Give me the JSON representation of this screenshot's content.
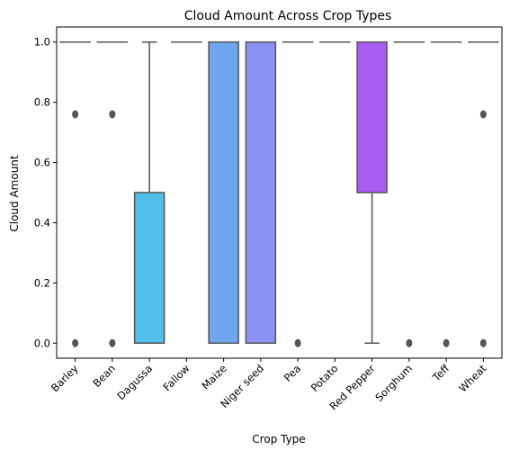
{
  "chart_data": {
    "type": "box",
    "title": "Cloud Amount Across Crop Types",
    "xlabel": "Crop Type",
    "ylabel": "Cloud Amount",
    "ylim": [
      -0.05,
      1.05
    ],
    "yticks": [
      "0.0",
      "0.2",
      "0.4",
      "0.6",
      "0.8",
      "1.0"
    ],
    "grid": false,
    "legend": "none",
    "categories": [
      "Barley",
      "Bean",
      "Dagussa",
      "Fallow",
      "Maize",
      "Niger seed",
      "Pea",
      "Potato",
      "Red Pepper",
      "Sorghum",
      "Teff",
      "Wheat"
    ],
    "boxes": [
      {
        "q1": 1.0,
        "median": 1.0,
        "q3": 1.0,
        "whisker_low": 1.0,
        "whisker_high": 1.0,
        "outliers": [
          0.0,
          0.76
        ]
      },
      {
        "q1": 1.0,
        "median": 1.0,
        "q3": 1.0,
        "whisker_low": 1.0,
        "whisker_high": 1.0,
        "outliers": [
          0.0,
          0.76
        ]
      },
      {
        "q1": 0.0,
        "median": 0.0,
        "q3": 0.5,
        "whisker_low": 0.0,
        "whisker_high": 1.0,
        "outliers": []
      },
      {
        "q1": 1.0,
        "median": 1.0,
        "q3": 1.0,
        "whisker_low": 1.0,
        "whisker_high": 1.0,
        "outliers": []
      },
      {
        "q1": 0.0,
        "median": 1.0,
        "q3": 1.0,
        "whisker_low": 0.0,
        "whisker_high": 1.0,
        "outliers": []
      },
      {
        "q1": 0.0,
        "median": 1.0,
        "q3": 1.0,
        "whisker_low": 0.0,
        "whisker_high": 1.0,
        "outliers": []
      },
      {
        "q1": 1.0,
        "median": 1.0,
        "q3": 1.0,
        "whisker_low": 1.0,
        "whisker_high": 1.0,
        "outliers": [
          0.0
        ]
      },
      {
        "q1": 1.0,
        "median": 1.0,
        "q3": 1.0,
        "whisker_low": 1.0,
        "whisker_high": 1.0,
        "outliers": []
      },
      {
        "q1": 0.5,
        "median": 1.0,
        "q3": 1.0,
        "whisker_low": 0.0,
        "whisker_high": 1.0,
        "outliers": []
      },
      {
        "q1": 1.0,
        "median": 1.0,
        "q3": 1.0,
        "whisker_low": 1.0,
        "whisker_high": 1.0,
        "outliers": [
          0.0
        ]
      },
      {
        "q1": 1.0,
        "median": 1.0,
        "q3": 1.0,
        "whisker_low": 1.0,
        "whisker_high": 1.0,
        "outliers": [
          0.0
        ]
      },
      {
        "q1": 1.0,
        "median": 1.0,
        "q3": 1.0,
        "whisker_low": 1.0,
        "whisker_high": 1.0,
        "outliers": [
          0.0,
          0.76
        ]
      }
    ],
    "colors": [
      "#6e40aa",
      "#7c3fb2",
      "#4fc0ea",
      "#5f9bf0",
      "#6ea6f0",
      "#8a93f3",
      "#6e40aa",
      "#6e40aa",
      "#a95cf0",
      "#6e40aa",
      "#6e40aa",
      "#6e40aa"
    ],
    "line_color": "#555555"
  }
}
